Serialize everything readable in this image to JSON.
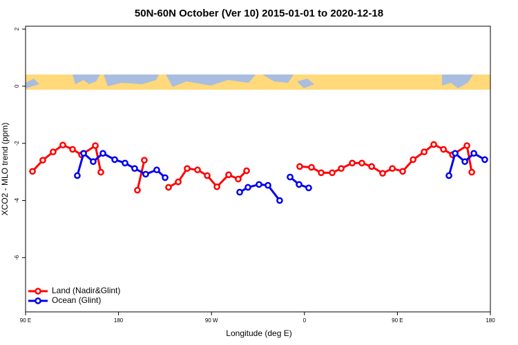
{
  "chart_data": {
    "type": "line",
    "title": "50N-60N October (Ver 10)   2015-01-01 to 2020-12-18",
    "x_label": "Longitude (deg E)",
    "y_label": "XCO2 - MLO trend (ppm)",
    "xlim": [
      90,
      540
    ],
    "xticks": [
      {
        "value": 90,
        "label": "90 E"
      },
      {
        "value": 180,
        "label": "180"
      },
      {
        "value": 270,
        "label": "90 W"
      },
      {
        "value": 360,
        "label": "0"
      },
      {
        "value": 450,
        "label": "90 E"
      },
      {
        "value": 540,
        "label": "180"
      }
    ],
    "ylim": [
      -7.9,
      2.1
    ],
    "yticks": [
      2,
      0,
      -2,
      -4,
      -6
    ],
    "legend": "bottom-left",
    "series": [
      {
        "name": "Land (Nadir&Glint)",
        "color": "#ff0000",
        "x": [
          96.7,
          106.7,
          116.7,
          126.1,
          135.5,
          144.2,
          157.6,
          162.9,
          null,
          198.3,
          205,
          null,
          228.4,
          237.8,
          246.5,
          256.5,
          265.9,
          275.3,
          286.6,
          295.9,
          304,
          null,
          355.4,
          366.8,
          376.2,
          386.9,
          395.6,
          406.3,
          415.6,
          425,
          435.7,
          445.1,
          455.1,
          465.2,
          475.9,
          485.2,
          494.6,
          503.3,
          517.3,
          522
        ],
        "values": [
          -2.98,
          -2.59,
          -2.3,
          -2.06,
          -2.21,
          -2.4,
          -2.08,
          -3.01,
          null,
          -3.64,
          -2.59,
          null,
          -3.54,
          -3.35,
          -2.88,
          -2.93,
          -3.13,
          -3.52,
          -3.1,
          -3.25,
          -2.96,
          null,
          -2.81,
          -2.84,
          -3.03,
          -3.03,
          -2.88,
          -2.69,
          -2.69,
          -2.81,
          -3.05,
          -2.88,
          -2.98,
          -2.57,
          -2.3,
          -2.04,
          -2.21,
          -2.4,
          -2.08,
          -3.01
        ]
      },
      {
        "name": "Ocean (Glint)",
        "color": "#0000ee",
        "x": [
          140.1,
          146.2,
          155.5,
          164.9,
          176.3,
          186.3,
          195.6,
          206.3,
          217,
          225.1,
          null,
          297.3,
          305.3,
          316,
          324.7,
          336,
          null,
          346.1,
          354.8,
          364.1,
          null,
          499.9,
          505.9,
          515.3,
          524,
          534.6
        ],
        "values": [
          -3.13,
          -2.35,
          -2.64,
          -2.35,
          -2.57,
          -2.69,
          -2.88,
          -3.08,
          -2.93,
          -3.2,
          null,
          -3.71,
          -3.54,
          -3.44,
          -3.47,
          -4.0,
          null,
          -3.18,
          -3.44,
          -3.56,
          null,
          -3.13,
          -2.35,
          -2.64,
          -2.35,
          -2.57
        ]
      }
    ]
  }
}
